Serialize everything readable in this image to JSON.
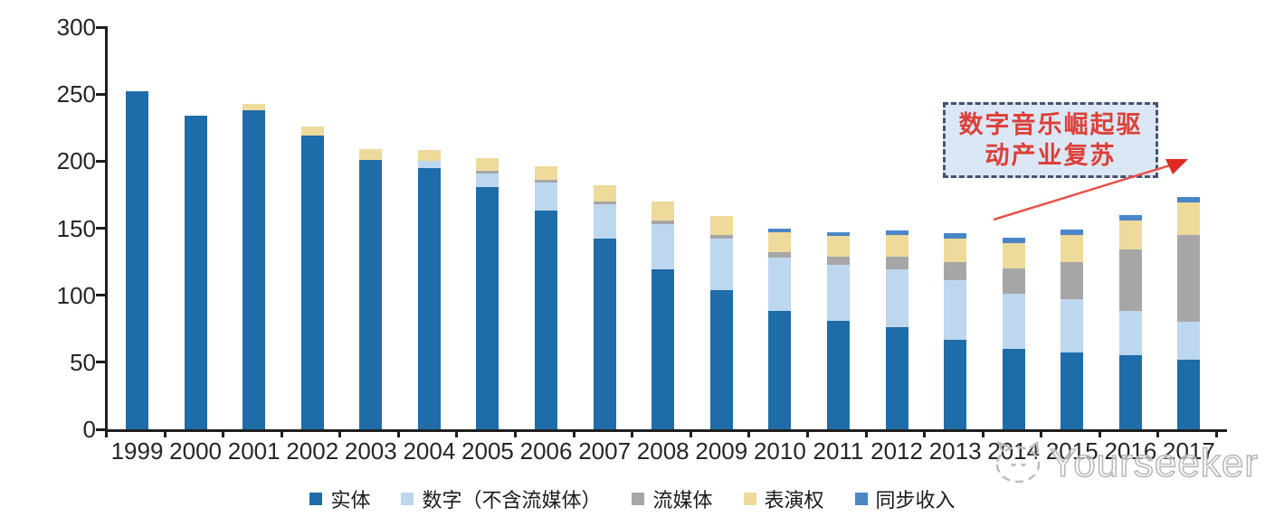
{
  "chart_data": {
    "type": "bar",
    "stacked": true,
    "categories": [
      "1999",
      "2000",
      "2001",
      "2002",
      "2003",
      "2004",
      "2005",
      "2006",
      "2007",
      "2008",
      "2009",
      "2010",
      "2011",
      "2012",
      "2013",
      "2014",
      "2015",
      "2016",
      "2017"
    ],
    "series": [
      {
        "name": "实体",
        "color": "#1e6ca8",
        "values": [
          252,
          234,
          238,
          219,
          201,
          195,
          181,
          163,
          142,
          119,
          104,
          88,
          81,
          76,
          67,
          60,
          57,
          55,
          52
        ]
      },
      {
        "name": "数字（不含流媒体）",
        "color": "#bdd7ee",
        "values": [
          0,
          0,
          0,
          0,
          0,
          5,
          10,
          21,
          26,
          34,
          38,
          40,
          42,
          43,
          44,
          41,
          40,
          33,
          28
        ]
      },
      {
        "name": "流媒体",
        "color": "#a6a6a6",
        "values": [
          0,
          0,
          0,
          0,
          0,
          0,
          2,
          2,
          2,
          3,
          3,
          4,
          6,
          10,
          14,
          19,
          28,
          46,
          65
        ]
      },
      {
        "name": "表演权",
        "color": "#eeda9a",
        "values": [
          0,
          0,
          5,
          7,
          8,
          8,
          9,
          10,
          12,
          14,
          14,
          15,
          15,
          16,
          17,
          19,
          20,
          22,
          24
        ]
      },
      {
        "name": "同步收入",
        "color": "#4a86c6",
        "values": [
          0,
          0,
          0,
          0,
          0,
          0,
          0,
          0,
          0,
          0,
          0,
          3,
          3,
          3,
          4,
          4,
          4,
          4,
          4
        ]
      }
    ],
    "ylim": [
      0,
      300
    ],
    "yticks": [
      "0",
      "50",
      "100",
      "150",
      "200",
      "250",
      "300"
    ],
    "grid": false,
    "legend_position": "bottom"
  },
  "annotation": {
    "line1": "数字音乐崛起驱",
    "line2": "动产业复苏",
    "text_color": "#dd3f38",
    "border_color": "#44546a",
    "fill_color": "#dce7f5",
    "arrow_color": "#e8524c"
  },
  "watermark": {
    "text": "Yourseeker"
  }
}
